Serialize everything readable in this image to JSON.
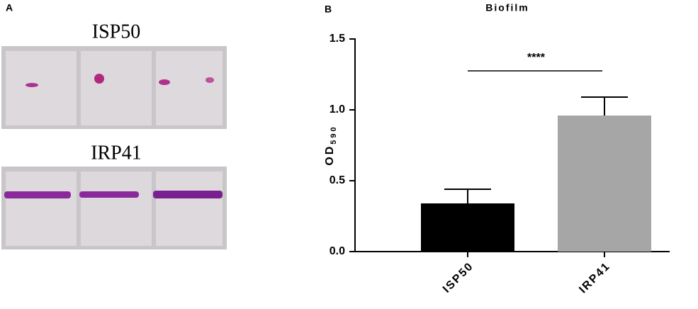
{
  "panels": {
    "left_label": "A",
    "right_label": "B",
    "photo_labels": [
      "ISP50",
      "IRP41"
    ]
  },
  "chart_data": {
    "type": "bar",
    "title": "Biofilm",
    "ylabel": {
      "text": "OD",
      "subscript": "590"
    },
    "categories": [
      "ISP50",
      "IRP41"
    ],
    "values": [
      0.34,
      0.96
    ],
    "errors": [
      0.1,
      0.13
    ],
    "colors": [
      "#000000",
      "#a6a6a6"
    ],
    "ylim": [
      0,
      1.5
    ],
    "yticks": [
      {
        "value": 0,
        "label": "0.0"
      },
      0.5,
      {
        "value": 1,
        "label": "1.0"
      },
      1.5
    ],
    "annotation": "****",
    "grid": false
  }
}
